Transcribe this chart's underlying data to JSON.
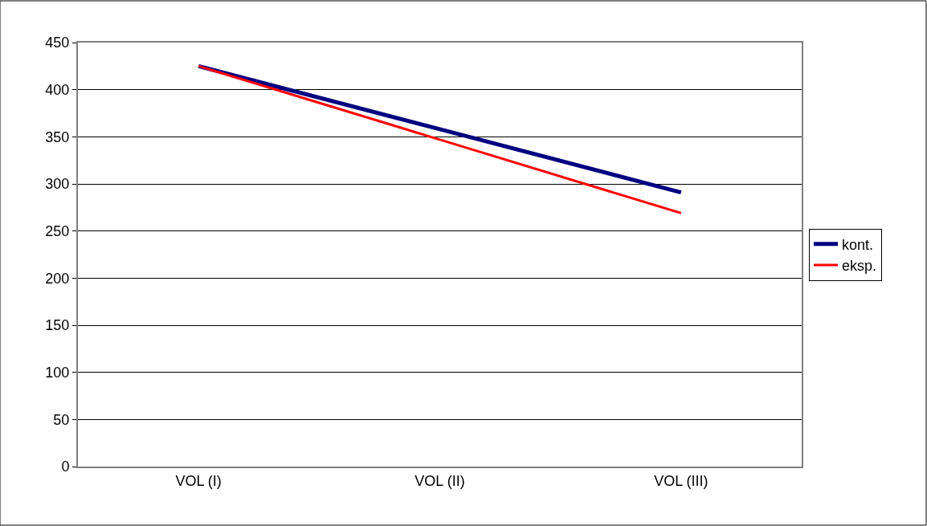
{
  "chart_data": {
    "type": "line",
    "categories": [
      "VOL (I)",
      "VOL (II)",
      "VOL (III)"
    ],
    "series": [
      {
        "name": "kont.",
        "color": "#000080",
        "values": [
          425,
          358,
          291
        ]
      },
      {
        "name": "eksp.",
        "color": "#ff0000",
        "values": [
          425,
          347,
          269
        ]
      }
    ],
    "ylim": [
      0,
      450
    ],
    "yticks": [
      0,
      50,
      100,
      150,
      200,
      250,
      300,
      350,
      400,
      450
    ],
    "grid": "y",
    "legend": "right",
    "marker": "none",
    "line_style": "solid"
  }
}
